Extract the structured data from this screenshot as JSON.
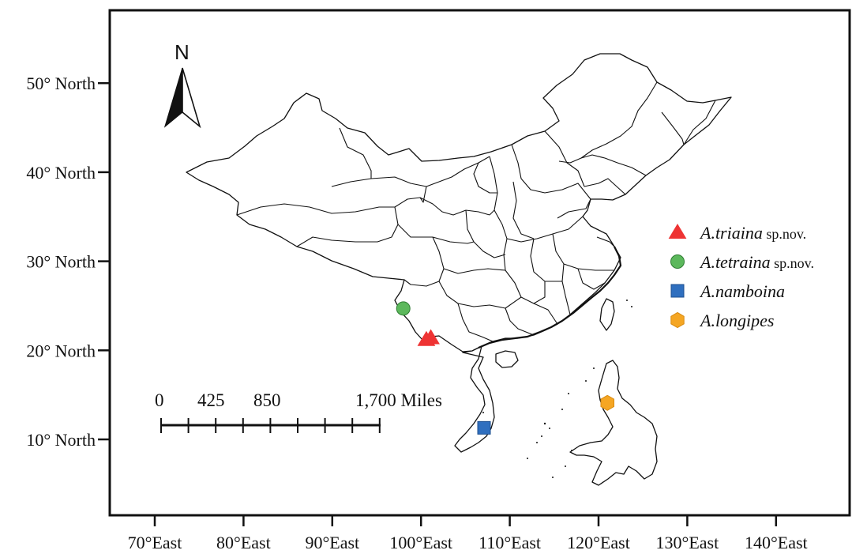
{
  "north": {
    "label": "N"
  },
  "axes": {
    "y_ticks": [
      {
        "lat": 50,
        "label": "50° North"
      },
      {
        "lat": 40,
        "label": "40° North"
      },
      {
        "lat": 30,
        "label": "30° North"
      },
      {
        "lat": 20,
        "label": "20° North"
      },
      {
        "lat": 10,
        "label": "10° North"
      }
    ],
    "x_ticks": [
      {
        "lon": 70,
        "label": "70°East"
      },
      {
        "lon": 80,
        "label": "80°East"
      },
      {
        "lon": 90,
        "label": "90°East"
      },
      {
        "lon": 100,
        "label": "100°East"
      },
      {
        "lon": 110,
        "label": "110°East"
      },
      {
        "lon": 120,
        "label": "120°East"
      },
      {
        "lon": 130,
        "label": "130°East"
      },
      {
        "lon": 140,
        "label": "140°East"
      }
    ]
  },
  "scale_bar": {
    "labels": [
      "0",
      "425",
      "850",
      "1,700 Miles"
    ]
  },
  "legend": [
    {
      "species": "A.triaina",
      "suffix": " sp.nov.",
      "shape": "triangle",
      "color": "#ee3333"
    },
    {
      "species": "A.tetraina",
      "suffix": " sp.nov.",
      "shape": "circle",
      "color": "#5cb85c"
    },
    {
      "species": "A.namboina",
      "suffix": "",
      "shape": "square",
      "color": "#2f6fbf"
    },
    {
      "species": "A.longipes",
      "suffix": "",
      "shape": "hexagon",
      "color": "#f5a623"
    }
  ],
  "records": [
    {
      "species": "A.triaina",
      "shape": "triangle",
      "color": "#ee3333",
      "lon": 100.6,
      "lat": 21.2
    },
    {
      "species": "A.triaina",
      "shape": "triangle",
      "color": "#ee3333",
      "lon": 101.1,
      "lat": 21.4
    },
    {
      "species": "A.tetraina",
      "shape": "circle",
      "color": "#5cb85c",
      "lon": 98.0,
      "lat": 24.7
    },
    {
      "species": "A.namboina",
      "shape": "square",
      "color": "#2f6fbf",
      "lon": 107.1,
      "lat": 11.3
    },
    {
      "species": "A.longipes",
      "shape": "hexagon",
      "color": "#f5a623",
      "lon": 121.0,
      "lat": 14.1
    }
  ]
}
